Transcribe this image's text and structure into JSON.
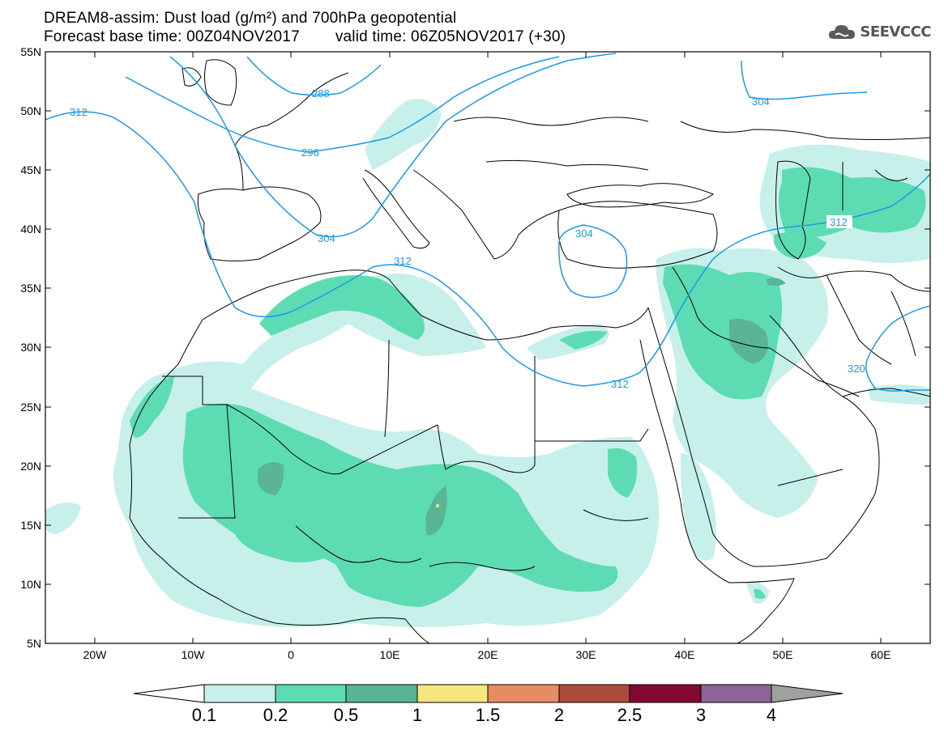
{
  "header": {
    "title_line1": "DREAM8-assim: Dust load (g/m²) and 700hPa geopotential",
    "base_time": "Forecast base time: 00Z04NOV2017",
    "valid_time": "valid time: 06Z05NOV2017 (+30)"
  },
  "logo": {
    "text": "SEEVCCC",
    "icon": "cloud-icon"
  },
  "map": {
    "lat_labels": [
      "55N",
      "50N",
      "45N",
      "40N",
      "35N",
      "30N",
      "25N",
      "20N",
      "15N",
      "10N",
      "5N"
    ],
    "lon_labels": [
      "20W",
      "10W",
      "0",
      "10E",
      "20E",
      "30E",
      "40E",
      "50E",
      "60E"
    ],
    "contour_labels": [
      "312",
      "296",
      "288",
      "304",
      "304",
      "312",
      "312",
      "304",
      "312",
      "320"
    ],
    "contour_color": "#1a9be6",
    "coastline_color": "#000000"
  },
  "colorbar": {
    "labels": [
      "0.1",
      "0.2",
      "0.5",
      "1",
      "1.5",
      "2",
      "2.5",
      "3",
      "4"
    ],
    "colors": [
      "#c8f0ea",
      "#5ddcb4",
      "#5ab496",
      "#f5e67d",
      "#e68c64",
      "#aa4b3c",
      "#820a32",
      "#8c6496",
      "#a0a0a0"
    ]
  },
  "chart_data": {
    "type": "heatmap",
    "title": "DREAM8-assim: Dust load (g/m²) and 700hPa geopotential",
    "levels": [
      0.1,
      0.2,
      0.5,
      1,
      1.5,
      2,
      2.5,
      3,
      4
    ],
    "lon_range": [
      -25,
      65
    ],
    "lat_range": [
      5,
      55
    ],
    "contour_field": "700hPa geopotential",
    "contour_values": [
      288,
      296,
      304,
      312,
      320
    ]
  }
}
